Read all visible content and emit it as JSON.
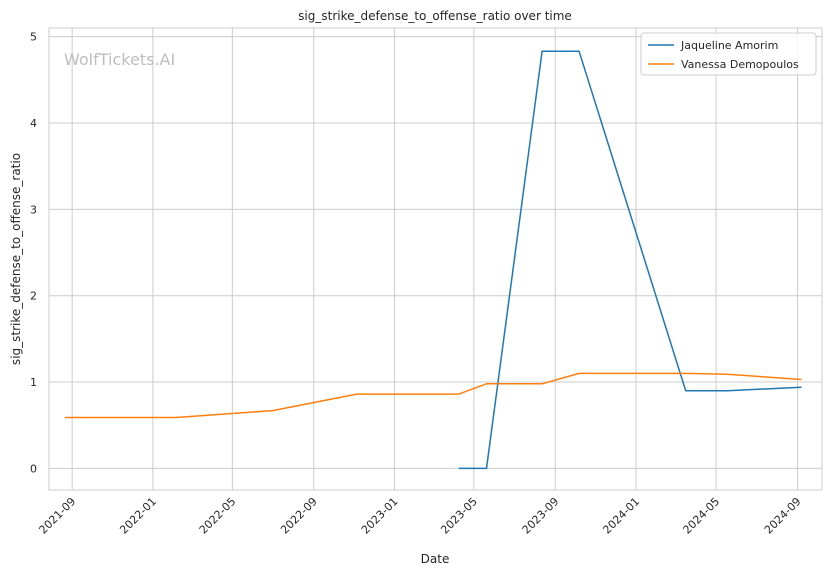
{
  "watermark": "WolfTickets.AI",
  "chart_data": {
    "type": "line",
    "title": "sig_strike_defense_to_offense_ratio over time",
    "xlabel": "Date",
    "ylabel": "sig_strike_defense_to_offense_ratio",
    "x_ticks": [
      "2021-09",
      "2022-01",
      "2022-05",
      "2022-09",
      "2023-01",
      "2023-05",
      "2023-09",
      "2024-01",
      "2024-05",
      "2024-09"
    ],
    "y_ticks": [
      0,
      1,
      2,
      3,
      4,
      5
    ],
    "xlim": [
      "2021-07-28",
      "2024-10-08"
    ],
    "ylim": [
      -0.25,
      5.1
    ],
    "grid": true,
    "legend_position": "top-right",
    "series": [
      {
        "name": "Jaqueline Amorim",
        "color": "#1f77b4",
        "points": [
          {
            "x": "2023-04-08",
            "y": 0.0
          },
          {
            "x": "2023-05-20",
            "y": 0.0
          },
          {
            "x": "2023-08-12",
            "y": 4.83
          },
          {
            "x": "2023-10-07",
            "y": 4.83
          },
          {
            "x": "2024-03-16",
            "y": 0.9
          },
          {
            "x": "2024-05-18",
            "y": 0.9
          },
          {
            "x": "2024-09-07",
            "y": 0.94
          }
        ]
      },
      {
        "name": "Vanessa Demopoulos",
        "color": "#ff7f0e",
        "points": [
          {
            "x": "2021-08-21",
            "y": 0.59
          },
          {
            "x": "2022-02-05",
            "y": 0.59
          },
          {
            "x": "2022-07-01",
            "y": 0.67
          },
          {
            "x": "2022-11-05",
            "y": 0.86
          },
          {
            "x": "2023-04-08",
            "y": 0.86
          },
          {
            "x": "2023-05-20",
            "y": 0.98
          },
          {
            "x": "2023-08-12",
            "y": 0.98
          },
          {
            "x": "2023-10-07",
            "y": 1.1
          },
          {
            "x": "2024-03-16",
            "y": 1.1
          },
          {
            "x": "2024-05-18",
            "y": 1.09
          },
          {
            "x": "2024-09-07",
            "y": 1.03
          }
        ]
      }
    ]
  }
}
